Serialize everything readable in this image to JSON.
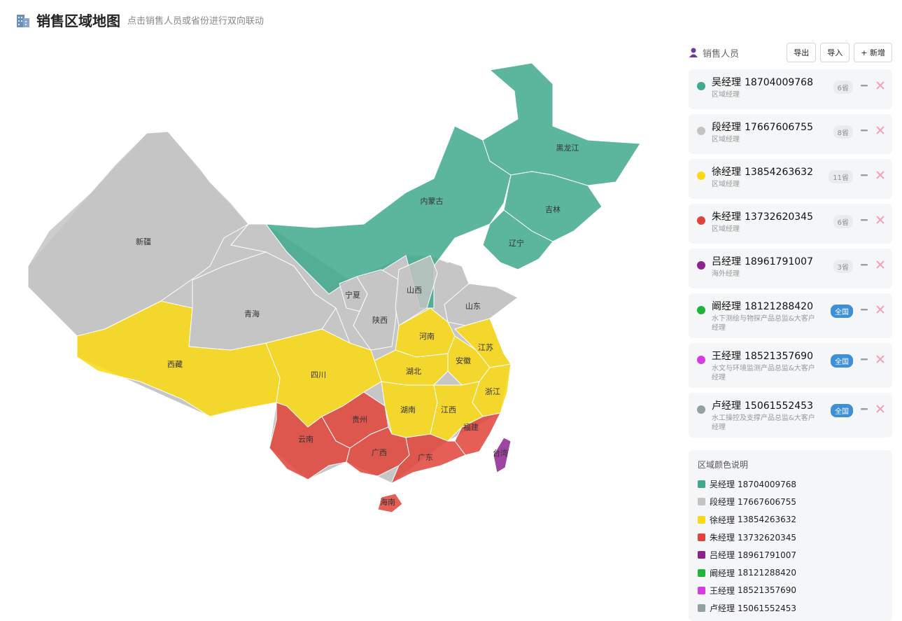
{
  "header": {
    "title": "销售区域地图",
    "subtitle": "点击销售人员或省份进行双向联动"
  },
  "panel": {
    "title": "销售人员",
    "buttons": [
      "导出",
      "导入",
      "+ 新增"
    ]
  },
  "salespeople": [
    {
      "name": "吴经理",
      "phone": "18704009768",
      "role": "区域经理",
      "badge": "6省",
      "color": "#3fa98d",
      "badge_color": "#e9ebee",
      "badge_text_color": "#8a8f96"
    },
    {
      "name": "段经理",
      "phone": "17667606755",
      "role": "区域经理",
      "badge": "8省",
      "color": "#c4c4c4",
      "badge_color": "#e9ebee",
      "badge_text_color": "#8a8f96"
    },
    {
      "name": "徐经理",
      "phone": "13854263632",
      "role": "区域经理",
      "badge": "11省",
      "color": "#fcd912",
      "badge_color": "#e9ebee",
      "badge_text_color": "#8a8f96"
    },
    {
      "name": "朱经理",
      "phone": "13732620345",
      "role": "区域经理",
      "badge": "6省",
      "color": "#e0433a",
      "badge_color": "#e9ebee",
      "badge_text_color": "#8a8f96"
    },
    {
      "name": "吕经理",
      "phone": "18961791007",
      "role": "海外经理",
      "badge": "3省",
      "color": "#8c2490",
      "badge_color": "#e9ebee",
      "badge_text_color": "#8a8f96"
    },
    {
      "name": "阚经理",
      "phone": "18121288420",
      "role": "水下测绘与物探产品总监&大客户经理",
      "badge": "全国",
      "color": "#1db53a",
      "badge_color": "#3d8fd6",
      "badge_text_color": "#ffffff"
    },
    {
      "name": "王经理",
      "phone": "18521357690",
      "role": "水文与环境监测产品总监&大客户经理",
      "badge": "全国",
      "color": "#d93be2",
      "badge_color": "#3d8fd6",
      "badge_text_color": "#ffffff"
    },
    {
      "name": "卢经理",
      "phone": "15061552453",
      "role": "水工操控及支撑产品总监&大客户经理",
      "badge": "全国",
      "color": "#93a0a0",
      "badge_color": "#3d8fd6",
      "badge_text_color": "#ffffff"
    }
  ],
  "legend": {
    "title": "区域颜色说明"
  },
  "provinces": [
    {
      "name": "新疆",
      "owner": 1
    },
    {
      "name": "西藏",
      "owner": 2
    },
    {
      "name": "青海",
      "owner": 1
    },
    {
      "name": "内蒙古",
      "owner": 0
    },
    {
      "name": "黑龙江",
      "owner": 0
    },
    {
      "name": "吉林",
      "owner": 0
    },
    {
      "name": "辽宁",
      "owner": 0
    },
    {
      "name": "宁夏",
      "owner": 1
    },
    {
      "name": "陕西",
      "owner": 1
    },
    {
      "name": "山西",
      "owner": 1
    },
    {
      "name": "山东",
      "owner": 1
    },
    {
      "name": "河南",
      "owner": 2
    },
    {
      "name": "江苏",
      "owner": 2
    },
    {
      "name": "安徽",
      "owner": 2
    },
    {
      "name": "湖北",
      "owner": 2
    },
    {
      "name": "四川",
      "owner": 2
    },
    {
      "name": "浙江",
      "owner": 2
    },
    {
      "name": "湖南",
      "owner": 2
    },
    {
      "name": "江西",
      "owner": 2
    },
    {
      "name": "福建",
      "owner": 3
    },
    {
      "name": "贵州",
      "owner": 3
    },
    {
      "name": "云南",
      "owner": 3
    },
    {
      "name": "广西",
      "owner": 3
    },
    {
      "name": "广东",
      "owner": 3
    },
    {
      "name": "海南",
      "owner": 3
    },
    {
      "name": "台湾",
      "owner": 4
    }
  ]
}
